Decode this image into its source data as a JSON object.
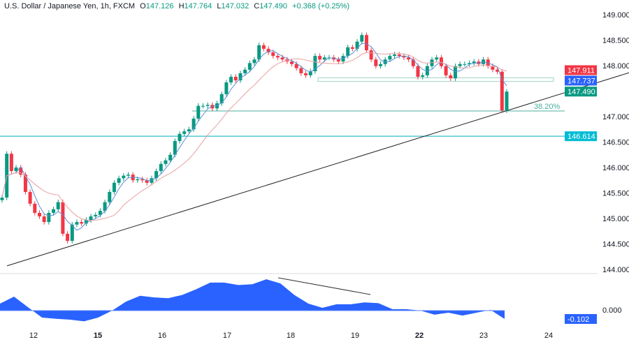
{
  "header": {
    "symbol": "U.S. Dollar / Japanese Yen, 1h, FXCM",
    "open_label": "O",
    "open": "147.126",
    "high_label": "H",
    "high": "147.764",
    "low_label": "L",
    "low": "147.032",
    "close_label": "C",
    "close": "147.490",
    "change": "+0.368 (+0.25%)"
  },
  "price_axis": {
    "ticks": [
      "149.000",
      "148.500",
      "148.000",
      "147.000",
      "146.500",
      "146.000",
      "145.500",
      "145.000",
      "144.500",
      "144.000"
    ],
    "tick_values": [
      149.0,
      148.5,
      148.0,
      147.0,
      146.5,
      146.0,
      145.5,
      145.0,
      144.5,
      144.0
    ],
    "tags": [
      {
        "label": "147.911",
        "value": 147.911,
        "color": "#f23645"
      },
      {
        "label": "147.737",
        "value": 147.737,
        "color": "#2962ff"
      },
      {
        "label": "147.490",
        "value": 147.49,
        "color": "#089981"
      },
      {
        "label": "146.614",
        "value": 146.614,
        "color": "#00bcd4"
      }
    ]
  },
  "time_axis": {
    "labels": [
      {
        "text": "12",
        "bold": false
      },
      {
        "text": "15",
        "bold": true
      },
      {
        "text": "16",
        "bold": false
      },
      {
        "text": "17",
        "bold": false
      },
      {
        "text": "18",
        "bold": false
      },
      {
        "text": "19",
        "bold": false
      },
      {
        "text": "22",
        "bold": true
      },
      {
        "text": "23",
        "bold": false
      },
      {
        "text": "24",
        "bold": false
      }
    ]
  },
  "drawings": {
    "fib_label": "38.20%",
    "fib_level": 147.11,
    "support_level": 146.614,
    "zone_top": 147.76,
    "zone_bottom": 147.69,
    "trendline": {
      "from": 144.07,
      "to": 147.86
    }
  },
  "oscillator": {
    "zero_label": "0.000",
    "current_label": "-0.102",
    "color": "#2962ff"
  },
  "chart_data": {
    "type": "candlestick",
    "title": "U.S. Dollar / Japanese Yen, 1h, FXCM",
    "ylim": [
      143.95,
      149.3
    ],
    "up_color": "#089981",
    "down_color": "#f23645",
    "ma_fast_color": "#5b8fd6",
    "ma_slow_color": "#e8a0a0",
    "closes": [
      145.41,
      146.27,
      145.93,
      146.0,
      145.86,
      145.52,
      145.29,
      145.11,
      145.04,
      144.93,
      145.11,
      145.18,
      145.32,
      144.7,
      144.56,
      144.88,
      144.93,
      144.9,
      144.97,
      145.04,
      145.07,
      145.15,
      145.32,
      145.52,
      145.7,
      145.79,
      145.84,
      145.86,
      145.75,
      145.77,
      145.75,
      145.7,
      145.79,
      145.93,
      146.07,
      146.14,
      146.25,
      146.52,
      146.66,
      146.71,
      146.75,
      146.96,
      147.21,
      147.21,
      147.23,
      147.16,
      147.26,
      147.44,
      147.67,
      147.78,
      147.71,
      147.85,
      147.92,
      148.05,
      148.12,
      148.4,
      148.33,
      148.26,
      148.19,
      148.16,
      148.12,
      148.08,
      148.03,
      147.95,
      147.85,
      147.81,
      147.89,
      148.19,
      148.12,
      148.16,
      148.16,
      148.12,
      148.08,
      148.19,
      148.36,
      148.33,
      148.47,
      148.6,
      148.3,
      148.12,
      147.99,
      148.03,
      148.12,
      148.19,
      148.22,
      148.19,
      148.16,
      148.12,
      147.99,
      147.78,
      147.81,
      147.99,
      148.12,
      148.16,
      147.99,
      147.81,
      147.75,
      147.99,
      148.03,
      148.03,
      148.05,
      148.08,
      148.03,
      148.12,
      147.99,
      147.92,
      147.88,
      147.12,
      147.49
    ],
    "oscillator_values": [
      0.085,
      0.17,
      0.04,
      -0.085,
      -0.1,
      -0.11,
      -0.13,
      -0.085,
      0,
      0.11,
      0.18,
      0.16,
      0.15,
      0.19,
      0.26,
      0.34,
      0.34,
      0.31,
      0.32,
      0.38,
      0.33,
      0.19,
      0.085,
      0.034,
      0.076,
      0.076,
      0.1,
      0.09,
      0.017,
      0.017,
      0,
      -0.05,
      -0.025,
      -0.06,
      -0.025,
      0.008,
      -0.102
    ]
  }
}
